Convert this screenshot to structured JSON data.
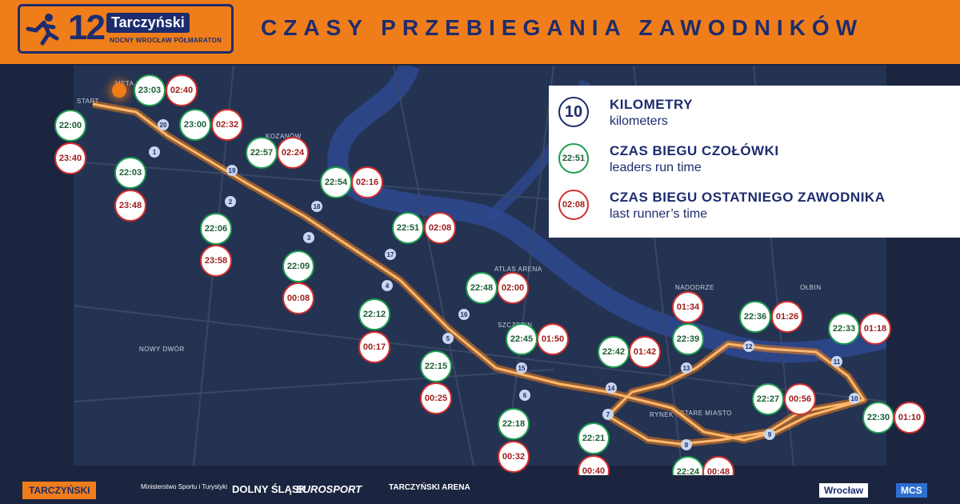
{
  "header": {
    "logo_number": "12",
    "logo_brand": "Tarczyński",
    "logo_subtitle": "NOCNY WROCŁAW PÓŁMARATON",
    "title": "CZASY PRZEBIEGANIA ZAWODNIKÓW"
  },
  "legend": {
    "km": {
      "value": "10",
      "title": "KILOMETRY",
      "subtitle": "kilometers"
    },
    "leader": {
      "value": "22:51",
      "title": "CZAS BIEGU CZOŁÓWKI",
      "subtitle": "leaders run time"
    },
    "last": {
      "value": "02:08",
      "title": "CZAS BIEGU OSTATNIEGO ZAWODNIKA",
      "subtitle": "last runner’s time"
    }
  },
  "map_labels": {
    "meta": "META",
    "start": "START",
    "kozanow": "KOZANÓW",
    "now_dwor": "NOWY DWÓR",
    "szczepin": "SZCZEPIN",
    "nadodrze": "NADODRZE",
    "olbin": "OŁBIN",
    "stare_miasto": "STARE MIASTO",
    "rynek": "RYNEK",
    "arena": "ATLAS ARENA"
  },
  "leader_times": [
    "23:03",
    "23:00",
    "22:00",
    "22:57",
    "22:03",
    "22:54",
    "22:06",
    "22:51",
    "22:09",
    "22:48",
    "22:12",
    "22:45",
    "22:15",
    "22:42",
    "22:39",
    "22:36",
    "22:33",
    "22:18",
    "22:21",
    "22:24",
    "22:27",
    "22:30"
  ],
  "last_times": [
    "02:40",
    "02:32",
    "23:40",
    "02:24",
    "23:48",
    "02:16",
    "23:58",
    "02:08",
    "00:08",
    "02:00",
    "00:17",
    "01:50",
    "00:25",
    "01:42",
    "01:34",
    "01:26",
    "01:18",
    "00:32",
    "00:40",
    "00:48",
    "00:56",
    "01:10"
  ],
  "km_markers": [
    "20",
    "1",
    "19",
    "2",
    "18",
    "3",
    "17",
    "4",
    "16",
    "5",
    "15",
    "14",
    "13",
    "12",
    "11",
    "10",
    "6",
    "7",
    "8",
    "9"
  ],
  "footer": {
    "s1": "TARCZYŃSKI",
    "s2": "Ministerstwo Sportu i Turystyki",
    "s3": "DOLNY ŚLĄSK",
    "s4": "EUROSPORT",
    "s5": "TARCZYŃSKI ARENA",
    "s6": "Wrocław",
    "s7": "MCS"
  },
  "colors": {
    "orange": "#ef7d1a",
    "navy": "#1d2c6e",
    "green": "#1e9e4f",
    "red": "#d32f2f",
    "map": "#253352"
  }
}
